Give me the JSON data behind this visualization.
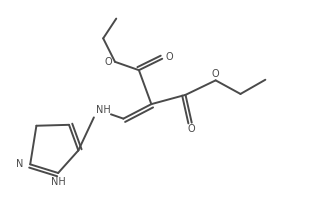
{
  "bg_color": "#ffffff",
  "line_color": "#4a4a4a",
  "line_width": 1.4,
  "figsize": [
    3.12,
    1.99
  ],
  "dpi": 100,
  "xlim": [
    0,
    10
  ],
  "ylim": [
    0,
    6.4
  ],
  "font_size": 7.0
}
